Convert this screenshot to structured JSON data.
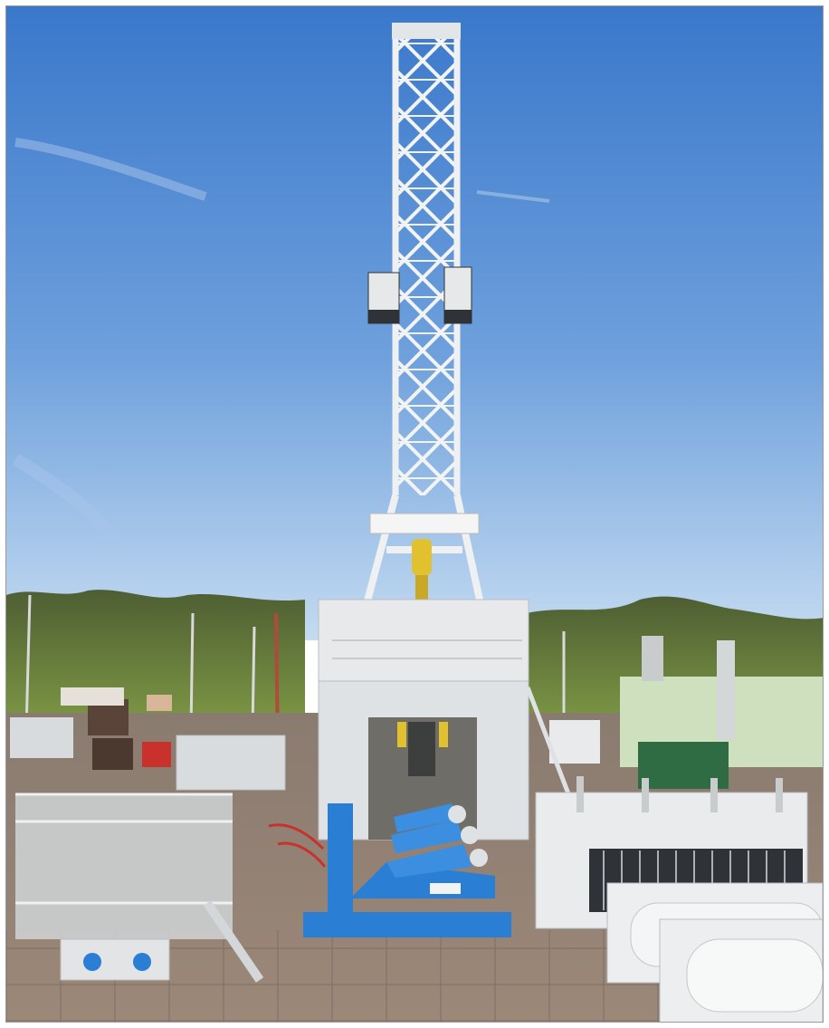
{
  "photo": {
    "subject": "drilling-rig",
    "colors": {
      "sky_top": "#3f7fcf",
      "sky_bottom": "#b9d3ef",
      "structure": "#e9ecee",
      "structure_shadow": "#b9bec3",
      "trees": "#566d3a",
      "pumps": "#2a7fd4",
      "ground": "#8f7f72",
      "red_equipment": "#c8312c",
      "hook_yellow": "#e1c22e"
    }
  },
  "labels": {
    "derrick_sign": "",
    "pump_plate": ""
  }
}
